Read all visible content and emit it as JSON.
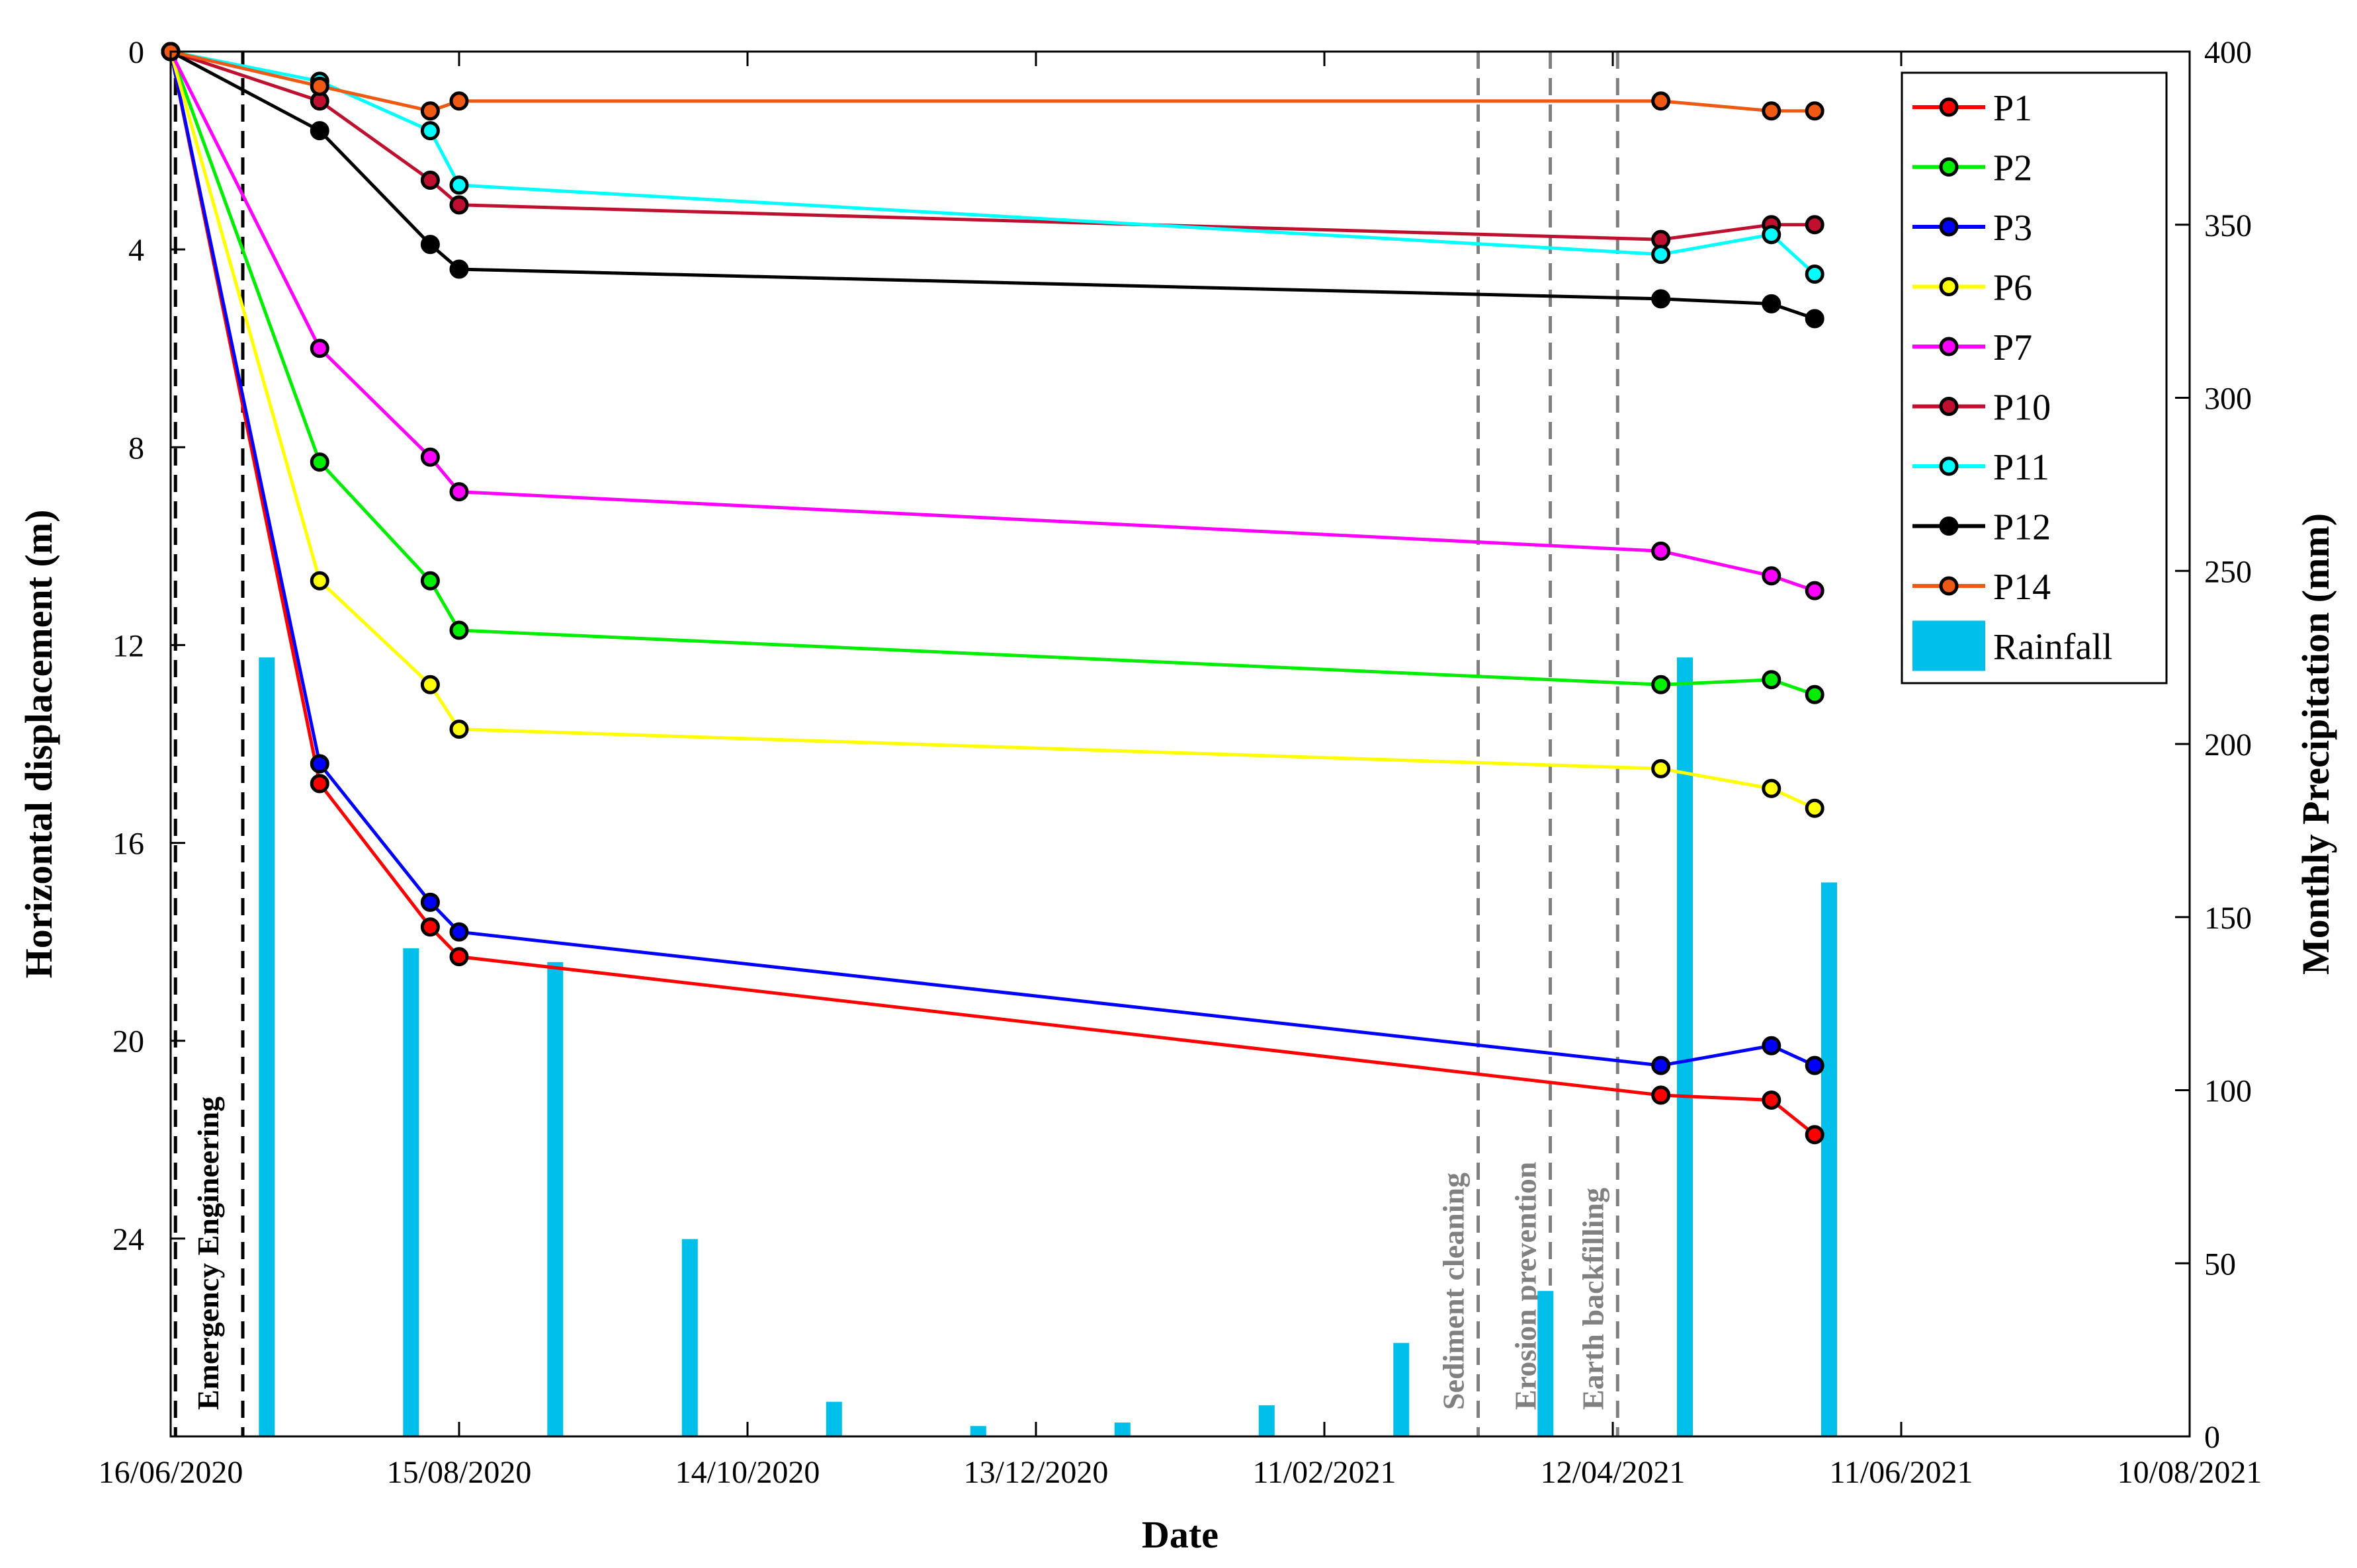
{
  "chart_data": {
    "type": "line",
    "x_axis": {
      "label": "Date",
      "tick_labels": [
        "16/06/2020",
        "15/08/2020",
        "14/10/2020",
        "13/12/2020",
        "11/02/2021",
        "12/04/2021",
        "11/06/2021",
        "10/08/2021"
      ],
      "tick_days": [
        0,
        60,
        120,
        180,
        240,
        300,
        360,
        420
      ],
      "range_days": [
        0,
        420
      ]
    },
    "y_axis_left": {
      "label": "Horizontal displacement (m)",
      "range": [
        0,
        28
      ],
      "reversed": true,
      "ticks": [
        0,
        4,
        8,
        12,
        16,
        20,
        24
      ]
    },
    "y_axis_right": {
      "label": "Monthly Precipitation (mm)",
      "range": [
        0,
        400
      ],
      "ticks": [
        0,
        50,
        100,
        150,
        200,
        250,
        300,
        350,
        400
      ]
    },
    "measurement_days": [
      0,
      31,
      54,
      60,
      310,
      333,
      342
    ],
    "series": [
      {
        "name": "P1",
        "color": "#ff0000",
        "values": [
          0,
          14.8,
          17.7,
          18.3,
          21.1,
          21.2,
          21.9
        ]
      },
      {
        "name": "P2",
        "color": "#00ee00",
        "values": [
          0,
          8.3,
          10.7,
          11.7,
          12.8,
          12.7,
          13.0
        ]
      },
      {
        "name": "P3",
        "color": "#0000ff",
        "values": [
          0,
          14.4,
          17.2,
          17.8,
          20.5,
          20.1,
          20.5
        ]
      },
      {
        "name": "P6",
        "color": "#ffff00",
        "values": [
          0,
          10.7,
          12.8,
          13.7,
          14.5,
          14.9,
          15.3
        ]
      },
      {
        "name": "P7",
        "color": "#ff00ff",
        "values": [
          0,
          6.0,
          8.2,
          8.9,
          10.1,
          10.6,
          10.9
        ]
      },
      {
        "name": "P10",
        "color": "#c0102f",
        "values": [
          0,
          1.0,
          2.6,
          3.1,
          3.8,
          3.5,
          3.5
        ]
      },
      {
        "name": "P11",
        "color": "#00ffff",
        "values": [
          0,
          0.6,
          1.6,
          2.7,
          4.1,
          3.7,
          4.5
        ]
      },
      {
        "name": "P12",
        "color": "#000000",
        "values": [
          0,
          1.6,
          3.9,
          4.4,
          5.0,
          5.1,
          5.4
        ]
      },
      {
        "name": "P14",
        "color": "#ee5a14",
        "values": [
          0,
          0.7,
          1.2,
          1.0,
          1.0,
          1.2,
          1.2
        ]
      }
    ],
    "rainfall": {
      "name": "Rainfall",
      "color": "#00bfea",
      "days": [
        20,
        50,
        80,
        108,
        138,
        168,
        198,
        228,
        256,
        286,
        315,
        345
      ],
      "values": [
        225,
        141,
        137,
        57,
        10,
        3,
        4,
        9,
        27,
        42,
        225,
        160
      ]
    },
    "event_markers": [
      {
        "label": "Emergency Engineering",
        "days": [
          1,
          15
        ],
        "style": "black-dashed"
      },
      {
        "label": "Sediment cleaning",
        "days": [
          272
        ],
        "style": "gray-dashed"
      },
      {
        "label": "Erosion prevention",
        "days": [
          287
        ],
        "style": "gray-dashed"
      },
      {
        "label": "Earth backfilling",
        "days": [
          301
        ],
        "style": "gray-dashed"
      }
    ],
    "legend_position": "top-right",
    "grid": false
  }
}
